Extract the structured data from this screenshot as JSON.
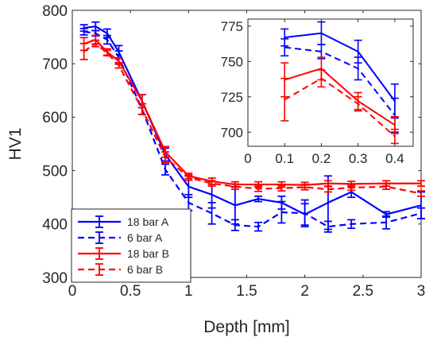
{
  "chart_data": [
    {
      "type": "line",
      "id": "main",
      "xlabel": "Depth [mm]",
      "ylabel": "HV1",
      "xlim": [
        0,
        3
      ],
      "ylim": [
        300,
        800
      ],
      "xticks": [
        0,
        0.5,
        1,
        1.5,
        2,
        2.5,
        3
      ],
      "xtick_labels": [
        "0",
        "0.5",
        "1",
        "1.5",
        "2",
        "2.5",
        "3"
      ],
      "yticks": [
        300,
        400,
        500,
        600,
        700,
        800
      ],
      "ytick_labels": [
        "300",
        "400",
        "500",
        "600",
        "700",
        "800"
      ],
      "legend_position": "bottom-left",
      "series": [
        {
          "name": "18 bar A",
          "color": "#0000ff",
          "dash": "solid",
          "x": [
            0.1,
            0.2,
            0.3,
            0.4,
            0.6,
            0.8,
            1.0,
            1.2,
            1.4,
            1.6,
            1.8,
            2.0,
            2.2,
            2.4,
            2.7,
            3.0
          ],
          "y": [
            767,
            770,
            757,
            722,
            630,
            530,
            470,
            455,
            435,
            447,
            440,
            418,
            440,
            460,
            418,
            435
          ],
          "err": [
            6,
            8,
            8,
            12,
            12,
            12,
            20,
            25,
            35,
            5,
            12,
            20,
            50,
            10,
            5,
            25
          ]
        },
        {
          "name": "6 bar A",
          "color": "#0000ff",
          "dash": "dashed",
          "x": [
            0.1,
            0.2,
            0.3,
            0.4,
            0.6,
            0.8,
            1.0,
            1.2,
            1.4,
            1.6,
            1.8,
            2.0,
            2.2,
            2.4,
            2.7,
            3.0
          ],
          "y": [
            760,
            757,
            745,
            712,
            615,
            502,
            440,
            420,
            398,
            395,
            422,
            420,
            395,
            400,
            403,
            420
          ],
          "err": [
            6,
            5,
            8,
            12,
            10,
            10,
            15,
            20,
            10,
            8,
            20,
            25,
            10,
            8,
            12,
            10
          ]
        },
        {
          "name": "18 bar B",
          "color": "#ff0000",
          "dash": "solid",
          "x": [
            0.1,
            0.2,
            0.3,
            0.4,
            0.6,
            0.8,
            1.0,
            1.2,
            1.4,
            1.6,
            1.8,
            2.0,
            2.2,
            2.4,
            2.7,
            3.0
          ],
          "y": [
            737,
            745,
            722,
            705,
            630,
            535,
            490,
            480,
            474,
            474,
            474,
            473,
            476,
            475,
            476,
            476
          ],
          "err": [
            12,
            8,
            6,
            6,
            12,
            10,
            5,
            6,
            5,
            5,
            5,
            5,
            5,
            5,
            5,
            5
          ]
        },
        {
          "name": "6 bar B",
          "color": "#ff0000",
          "dash": "dashed",
          "x": [
            0.1,
            0.2,
            0.3,
            0.4,
            0.6,
            0.8,
            1.0,
            1.2,
            1.4,
            1.6,
            1.8,
            2.0,
            2.2,
            2.4,
            2.7,
            3.0
          ],
          "y": [
            723,
            738,
            720,
            697,
            615,
            525,
            487,
            476,
            470,
            466,
            467,
            469,
            465,
            468,
            470,
            457
          ],
          "err": [
            15,
            6,
            5,
            5,
            10,
            10,
            5,
            5,
            5,
            5,
            5,
            5,
            5,
            5,
            5,
            5
          ]
        }
      ]
    },
    {
      "type": "line",
      "id": "inset",
      "xlim": [
        0,
        0.45
      ],
      "ylim": [
        690,
        780
      ],
      "xticks": [
        0,
        0.1,
        0.2,
        0.3,
        0.4
      ],
      "xtick_labels": [
        "0",
        "0.1",
        "0.2",
        "0.3",
        "0.4"
      ],
      "yticks": [
        700,
        725,
        750,
        775
      ],
      "ytick_labels": [
        "700",
        "725",
        "750",
        "775"
      ],
      "series": [
        {
          "name": "18 bar A",
          "color": "#0000ff",
          "dash": "solid",
          "x": [
            0.1,
            0.2,
            0.3,
            0.4
          ],
          "y": [
            767,
            770,
            757,
            722
          ],
          "err": [
            6,
            8,
            8,
            12
          ]
        },
        {
          "name": "6 bar A",
          "color": "#0000ff",
          "dash": "dashed",
          "x": [
            0.1,
            0.2,
            0.3,
            0.4
          ],
          "y": [
            760,
            757,
            745,
            712
          ],
          "err": [
            6,
            5,
            8,
            12
          ]
        },
        {
          "name": "18 bar B",
          "color": "#ff0000",
          "dash": "solid",
          "x": [
            0.1,
            0.2,
            0.3,
            0.4
          ],
          "y": [
            737,
            745,
            722,
            705
          ],
          "err": [
            12,
            8,
            6,
            6
          ]
        },
        {
          "name": "6 bar B",
          "color": "#ff0000",
          "dash": "dashed",
          "x": [
            0.1,
            0.2,
            0.3,
            0.4
          ],
          "y": [
            723,
            738,
            720,
            697
          ],
          "err": [
            15,
            6,
            5,
            5
          ]
        }
      ]
    }
  ]
}
